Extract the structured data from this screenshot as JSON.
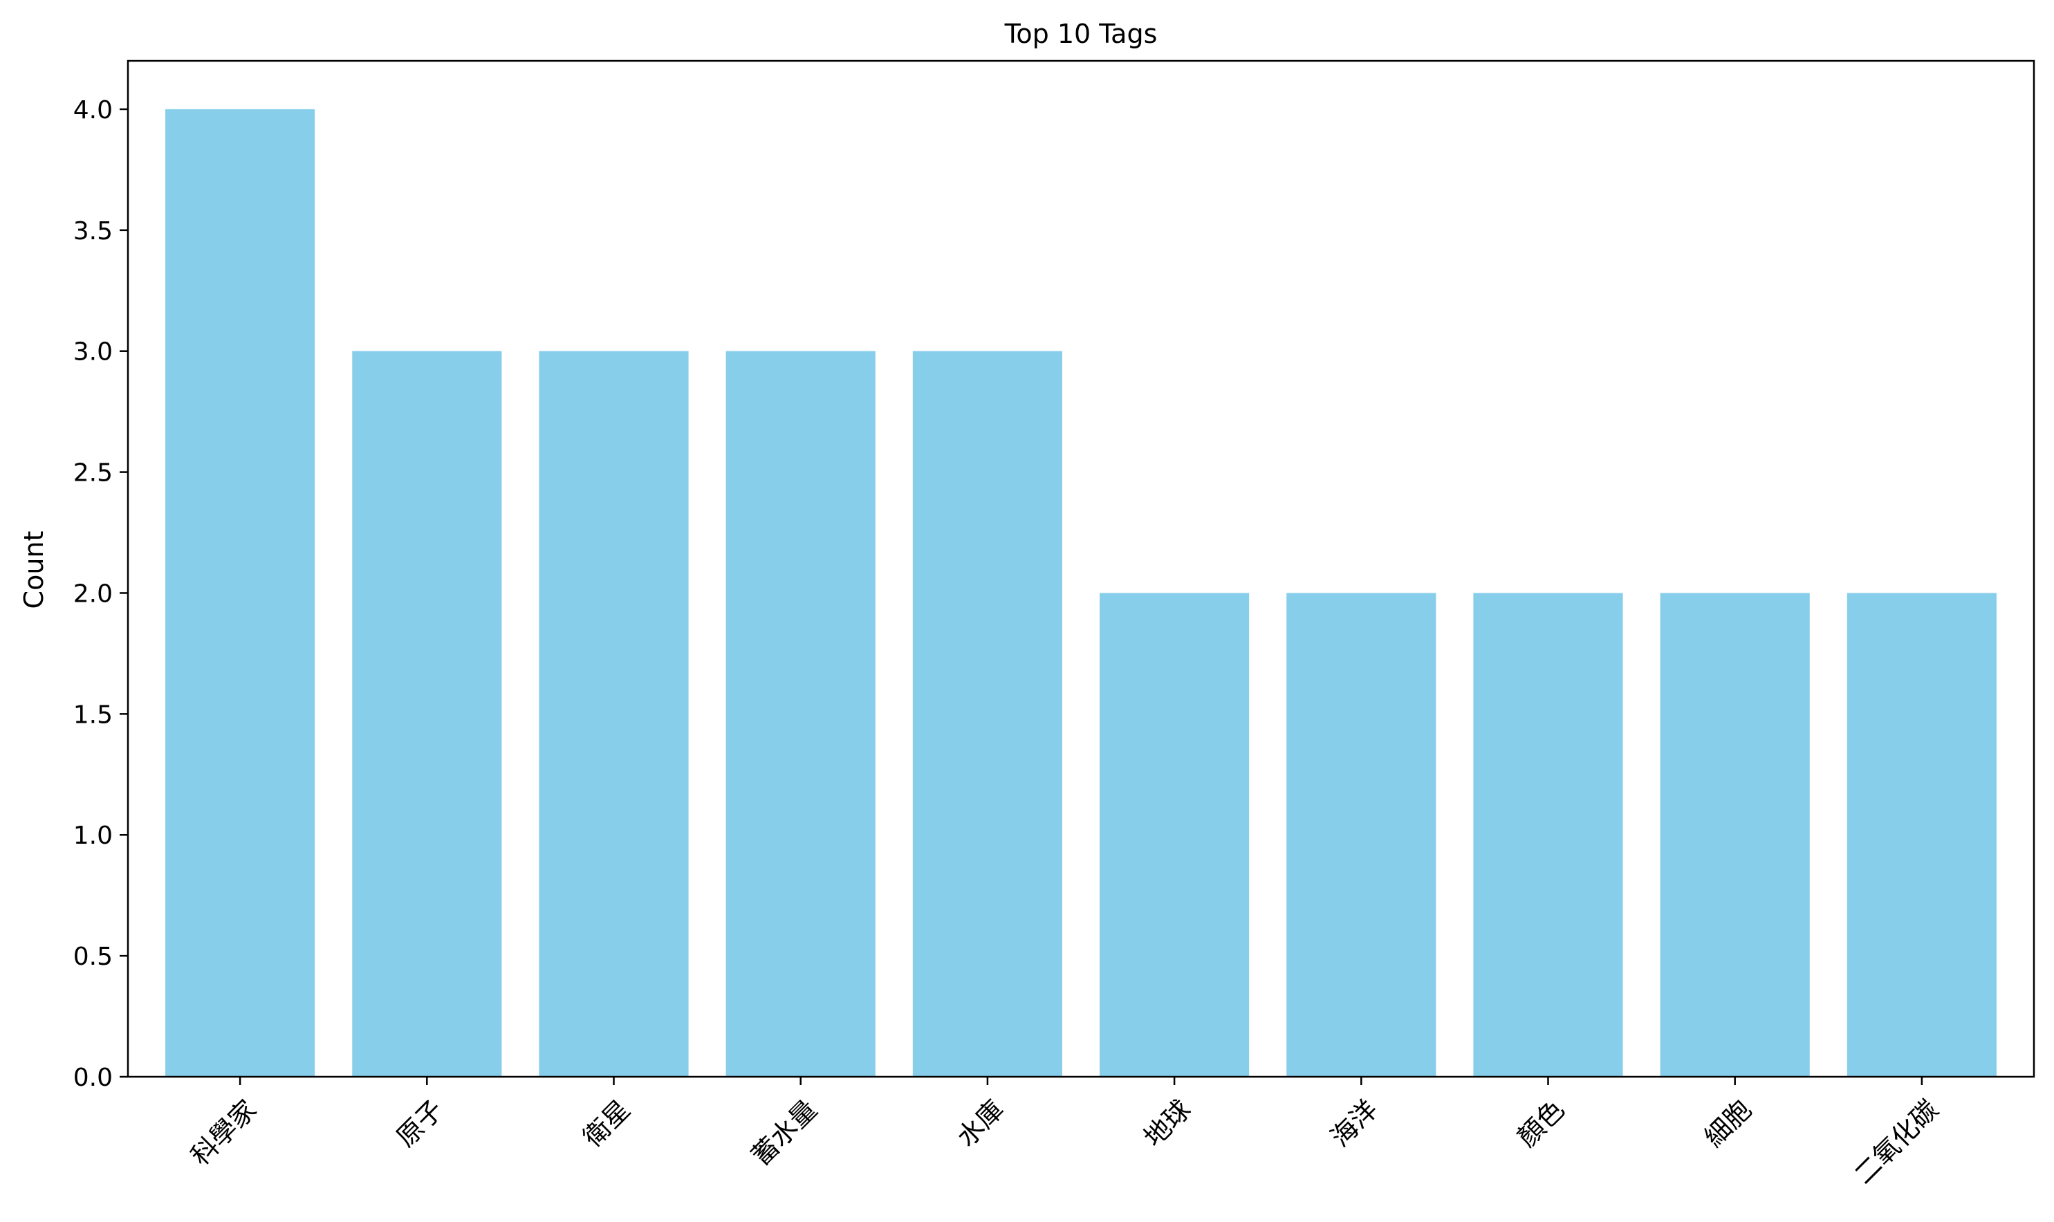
{
  "chart_data": {
    "type": "bar",
    "title": "Top 10 Tags",
    "xlabel": "",
    "ylabel": "Count",
    "categories": [
      "科學家",
      "原子",
      "衛星",
      "蓄水量",
      "水庫",
      "地球",
      "海洋",
      "顏色",
      "細胞",
      "二氧化碳"
    ],
    "values": [
      4,
      3,
      3,
      3,
      3,
      2,
      2,
      2,
      2,
      2
    ],
    "ylim": [
      0,
      4.2
    ],
    "yticks": [
      0.0,
      0.5,
      1.0,
      1.5,
      2.0,
      2.5,
      3.0,
      3.5,
      4.0
    ],
    "ytick_labels": [
      "0.0",
      "0.5",
      "1.0",
      "1.5",
      "2.0",
      "2.5",
      "3.0",
      "3.5",
      "4.0"
    ],
    "bar_color": "#87CEEB",
    "grid": false,
    "legend": "none",
    "xtick_rotation": "45° counter-clockwise"
  }
}
